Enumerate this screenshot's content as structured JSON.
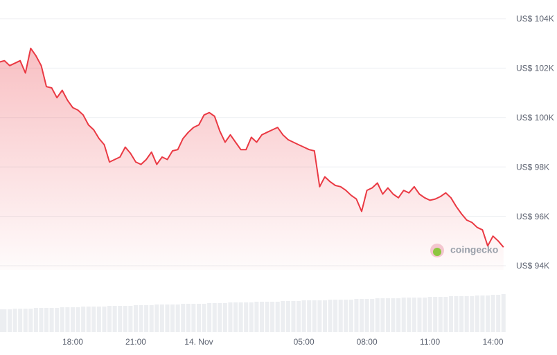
{
  "chart_data": {
    "type": "line",
    "watermark": "coingecko",
    "categories": [
      null,
      null,
      null,
      null,
      null,
      null,
      null,
      null,
      null,
      null,
      null,
      null,
      null,
      null,
      "18:00",
      null,
      null,
      null,
      null,
      null,
      null,
      null,
      null,
      null,
      null,
      null,
      "21:00",
      null,
      null,
      null,
      null,
      null,
      null,
      null,
      null,
      null,
      null,
      null,
      "14. Nov",
      null,
      null,
      null,
      null,
      null,
      null,
      null,
      null,
      null,
      null,
      null,
      null,
      null,
      null,
      null,
      null,
      null,
      null,
      null,
      "05:00",
      null,
      null,
      null,
      null,
      null,
      null,
      null,
      null,
      null,
      null,
      null,
      "08:00",
      null,
      null,
      null,
      null,
      null,
      null,
      null,
      null,
      null,
      null,
      null,
      "11:00",
      null,
      null,
      null,
      null,
      null,
      null,
      null,
      null,
      null,
      null,
      null,
      "14:00",
      null,
      null
    ],
    "series": [
      {
        "color": "#ea3943",
        "values": [
          102240,
          102300,
          102100,
          102200,
          102300,
          101800,
          102800,
          102500,
          102100,
          101250,
          101200,
          100800,
          101100,
          100700,
          100400,
          100300,
          100100,
          99700,
          99500,
          99150,
          98900,
          98200,
          98300,
          98400,
          98800,
          98550,
          98200,
          98100,
          98300,
          98600,
          98100,
          98400,
          98300,
          98650,
          98700,
          99150,
          99400,
          99600,
          99700,
          100100,
          100200,
          100050,
          99450,
          99000,
          99300,
          99000,
          98700,
          98700,
          99200,
          99000,
          99300,
          99400,
          99500,
          99600,
          99300,
          99100,
          99000,
          98900,
          98800,
          98700,
          98650,
          97200,
          97600,
          97400,
          97250,
          97200,
          97050,
          96850,
          96700,
          96200,
          97050,
          97150,
          97350,
          96900,
          97150,
          96900,
          96750,
          97050,
          96950,
          97200,
          96900,
          96750,
          96650,
          96700,
          96800,
          96950,
          96750,
          96400,
          96100,
          95850,
          95750,
          95550,
          95450,
          94800,
          95200,
          95000,
          94750
        ]
      }
    ],
    "volume": [
      33,
      33,
      33,
      34,
      34,
      34,
      34,
      35,
      35,
      35,
      35,
      35,
      36,
      36,
      36,
      36,
      37,
      37,
      37,
      37,
      37,
      38,
      38,
      38,
      38,
      38,
      39,
      39,
      39,
      39,
      40,
      40,
      40,
      40,
      40,
      41,
      41,
      41,
      41,
      41,
      42,
      42,
      42,
      42,
      43,
      43,
      43,
      43,
      43,
      44,
      44,
      44,
      44,
      44,
      45,
      45,
      45,
      45,
      46,
      46,
      46,
      46,
      46,
      47,
      47,
      47,
      47,
      47,
      48,
      48,
      48,
      48,
      49,
      49,
      49,
      49,
      49,
      50,
      50,
      50,
      50,
      50,
      51,
      51,
      51,
      51,
      52,
      52,
      52,
      52,
      52,
      53,
      53,
      53,
      54,
      54,
      55
    ],
    "ylim": [
      94000,
      104000
    ],
    "yticks": [
      {
        "value": 94000,
        "label": "US$ 94K"
      },
      {
        "value": 96000,
        "label": "US$ 96K"
      },
      {
        "value": 98000,
        "label": "US$ 98K"
      },
      {
        "value": 100000,
        "label": "US$ 100K"
      },
      {
        "value": 102000,
        "label": "US$ 102K"
      },
      {
        "value": 104000,
        "label": "US$ 104K"
      }
    ],
    "grid": true
  }
}
